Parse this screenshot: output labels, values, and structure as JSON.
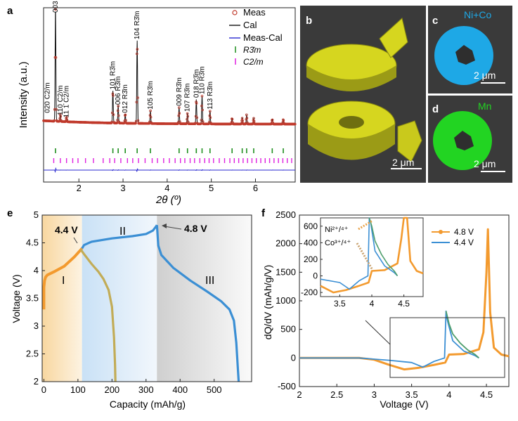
{
  "figure": {
    "panel_letters": {
      "a": "a",
      "b": "b",
      "c": "c",
      "d": "d",
      "e": "e",
      "f": "f"
    },
    "colors": {
      "meas": "#c0392b",
      "cal": "#111111",
      "diff": "#2a2ad0",
      "tick_r3m": "#1f8f1f",
      "tick_c2m": "#e020e0",
      "ni_co": "#1ea8e6",
      "mn": "#22d422",
      "particle": "#c8c81a",
      "curve_orange": "#f39a2e",
      "curve_blue": "#3b8fd4",
      "curve_olive": "#c2ac57",
      "curve_green": "#4e9e6c"
    }
  },
  "panel_a": {
    "ylabel": "Intensity (a.u.)",
    "xlabel": "2θ (º)",
    "legend": [
      "Meas",
      "Cal",
      "Meas-Cal",
      "R3̄m",
      "C2/m"
    ],
    "peak_labels": [
      {
        "text": "003 R3̄m",
        "x": 1.47
      },
      {
        "text": "020 C2/m",
        "x": 1.43
      },
      {
        "text": "110 C2/m",
        "x": 1.58
      },
      {
        "text": "11 1̄ C2/m",
        "x": 1.72
      },
      {
        "text": "101 R3̄m",
        "x": 2.77
      },
      {
        "text": "006 R3̄m",
        "x": 2.89
      },
      {
        "text": "012 R3̄m",
        "x": 3.05
      },
      {
        "text": "104 R3̄m",
        "x": 3.32
      },
      {
        "text": "105 R3̄m",
        "x": 3.62
      },
      {
        "text": "009 R3̄m",
        "x": 4.27
      },
      {
        "text": "107 R3̄m",
        "x": 4.46
      },
      {
        "text": "018 R3̄m",
        "x": 4.66
      },
      {
        "text": "110 R3̄m",
        "x": 4.79
      },
      {
        "text": "113 R3̄m",
        "x": 4.97
      }
    ]
  },
  "panel_b": {
    "scale": "2 μm"
  },
  "panel_c": {
    "label": "Ni+Co",
    "scale": "2 μm"
  },
  "panel_d": {
    "label": "Mn",
    "scale": "2 μm"
  },
  "panel_e": {
    "annotations": {
      "v44": "4.4 V",
      "v48": "4.8 V",
      "r1": "I",
      "r2": "II",
      "r3": "III"
    }
  },
  "panel_f": {
    "legend": [
      "4.8 V",
      "4.4 V"
    ],
    "inset_labels": {
      "ni": "Ni²⁺/⁴⁺",
      "co": "Co³⁺/⁴⁺"
    }
  },
  "chart_data": [
    {
      "id": "a",
      "type": "line",
      "title": "",
      "xlabel": "2θ (º)",
      "ylabel": "Intensity (a.u.)",
      "xlim": [
        1.2,
        6.9
      ],
      "xticks": [
        2,
        3,
        4,
        5,
        6
      ],
      "ylim": [
        0,
        100
      ],
      "grid": false,
      "peaks": [
        {
          "x": 1.47,
          "h": 96
        },
        {
          "x": 1.58,
          "h": 6
        },
        {
          "x": 1.72,
          "h": 4
        },
        {
          "x": 2.77,
          "h": 28
        },
        {
          "x": 2.89,
          "h": 15
        },
        {
          "x": 3.05,
          "h": 8
        },
        {
          "x": 3.32,
          "h": 71
        },
        {
          "x": 3.62,
          "h": 11
        },
        {
          "x": 4.27,
          "h": 14
        },
        {
          "x": 4.46,
          "h": 9
        },
        {
          "x": 4.66,
          "h": 21
        },
        {
          "x": 4.79,
          "h": 24
        },
        {
          "x": 4.97,
          "h": 11
        },
        {
          "x": 5.47,
          "h": 5
        },
        {
          "x": 5.7,
          "h": 5
        },
        {
          "x": 5.8,
          "h": 8
        },
        {
          "x": 5.96,
          "h": 5
        },
        {
          "x": 6.38,
          "h": 4
        },
        {
          "x": 6.63,
          "h": 4
        }
      ],
      "ticks_r3m": [
        1.47,
        2.77,
        2.89,
        3.05,
        3.32,
        3.62,
        4.27,
        4.46,
        4.66,
        4.79,
        4.97,
        5.47,
        5.7,
        5.8,
        5.96,
        6.38,
        6.63
      ],
      "ticks_c2m": [
        1.43,
        1.58,
        1.72,
        1.86,
        1.98,
        2.15,
        2.33,
        2.55,
        2.7,
        2.81,
        2.95,
        3.1,
        3.22,
        3.35,
        3.5,
        3.66,
        3.78,
        3.92,
        4.05,
        4.18,
        4.3,
        4.4,
        4.52,
        4.62,
        4.74,
        4.85,
        4.95,
        5.05,
        5.18,
        5.3,
        5.42,
        5.52,
        5.62,
        5.72,
        5.82,
        5.92,
        6.02,
        6.12,
        6.22,
        6.32,
        6.42,
        6.52,
        6.62,
        6.72,
        6.82
      ]
    },
    {
      "id": "e",
      "type": "line",
      "xlabel": "Capacity (mAh/g)",
      "ylabel": "Voltage (V)",
      "xlim": [
        -5,
        610
      ],
      "ylim": [
        2,
        5
      ],
      "xticks": [
        0,
        100,
        200,
        300,
        400,
        500
      ],
      "yticks": [
        2,
        2.5,
        3,
        3.5,
        4,
        4.5,
        5
      ],
      "regions": [
        {
          "name": "I",
          "x0": -5,
          "x1": 112
        },
        {
          "name": "II",
          "x0": 112,
          "x1": 332
        },
        {
          "name": "III",
          "x0": 332,
          "x1": 610
        }
      ],
      "series": [
        {
          "name": "charge 4.4 V",
          "color": "orange",
          "x": [
            0,
            0,
            2,
            5,
            10,
            30,
            60,
            90,
            112
          ],
          "y": [
            3.3,
            3.7,
            3.82,
            3.88,
            3.92,
            3.98,
            4.08,
            4.25,
            4.4
          ]
        },
        {
          "name": "discharge 4.4 V",
          "color": "olive",
          "x": [
            108,
            120,
            140,
            160,
            175,
            190,
            200,
            206,
            209,
            210
          ],
          "y": [
            4.38,
            4.28,
            4.12,
            3.98,
            3.85,
            3.65,
            3.35,
            2.8,
            2.3,
            2.0
          ]
        },
        {
          "name": "charge 4.8 V",
          "color": "blue",
          "x": [
            112,
            118,
            140,
            200,
            260,
            300,
            320,
            330,
            332
          ],
          "y": [
            4.4,
            4.46,
            4.52,
            4.58,
            4.62,
            4.66,
            4.72,
            4.8,
            4.82
          ]
        },
        {
          "name": "discharge 4.8 V",
          "color": "blue",
          "x": [
            332,
            336,
            345,
            380,
            430,
            480,
            520,
            545,
            558,
            565,
            570,
            572
          ],
          "y": [
            4.82,
            4.45,
            4.28,
            4.05,
            3.82,
            3.62,
            3.45,
            3.3,
            3.1,
            2.7,
            2.2,
            2.0
          ]
        }
      ]
    },
    {
      "id": "f",
      "type": "line",
      "xlabel": "Voltage (V)",
      "ylabel": "dQ/dV (mAh/g/V)",
      "xlim": [
        2,
        4.8
      ],
      "ylim": [
        -500,
        2500
      ],
      "xticks": [
        2,
        2.5,
        3,
        3.5,
        4,
        4.5
      ],
      "yticks": [
        -500,
        0,
        500,
        1000,
        1500,
        2000,
        2500
      ],
      "series": [
        {
          "name": "4.8 V",
          "color": "orange",
          "x": [
            2.0,
            2.8,
            3.0,
            3.2,
            3.4,
            3.6,
            3.8,
            3.95,
            4.0,
            4.2,
            4.4,
            4.46,
            4.5,
            4.52,
            4.55,
            4.6,
            4.7,
            4.8
          ],
          "y": [
            0,
            0,
            -30,
            -120,
            -200,
            -170,
            -120,
            -80,
            60,
            70,
            150,
            450,
            1500,
            2250,
            800,
            180,
            60,
            30
          ]
        },
        {
          "name": "4.4 V",
          "color": "blue",
          "x": [
            2.0,
            2.8,
            3.0,
            3.2,
            3.5,
            3.65,
            3.8,
            3.94,
            3.96,
            3.98,
            4.05,
            4.2,
            4.35,
            4.4
          ],
          "y": [
            0,
            0,
            -20,
            -40,
            -80,
            -160,
            -60,
            0,
            820,
            650,
            300,
            120,
            40,
            0
          ]
        },
        {
          "name": "4.4 V fit",
          "color": "green",
          "x": [
            3.96,
            4.0,
            4.05,
            4.15,
            4.25,
            4.35,
            4.4
          ],
          "y": [
            820,
            600,
            420,
            260,
            140,
            60,
            0
          ]
        }
      ],
      "inset": {
        "xlim": [
          3.2,
          4.8
        ],
        "ylim": [
          -250,
          700
        ],
        "xticks": [
          3.5,
          4,
          4.5
        ],
        "yticks": [
          -200,
          0,
          200,
          400,
          600
        ]
      }
    }
  ]
}
